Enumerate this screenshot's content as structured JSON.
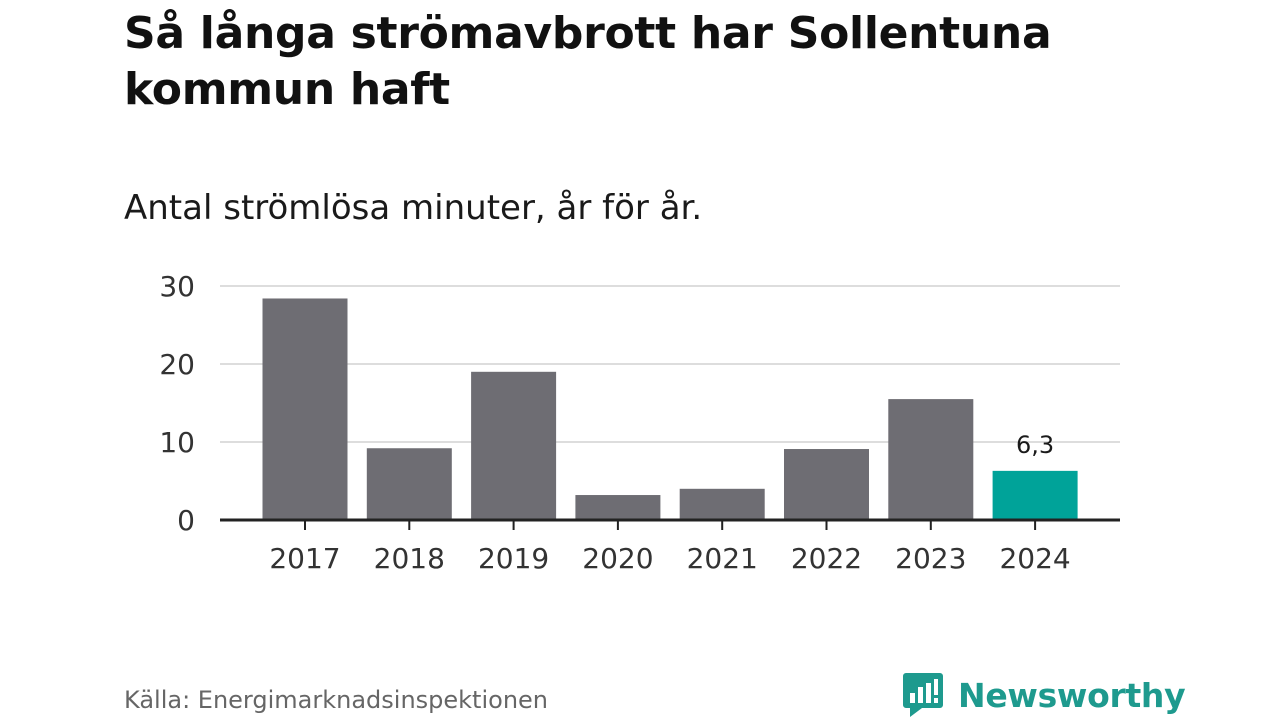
{
  "header": {
    "title": "Så långa strömavbrott har Sollentuna kommun haft",
    "subtitle": "Antal strömlösa minuter, år för år."
  },
  "footer": {
    "source": "Källa: Energimarknadsinspektionen",
    "brand": "Newsworthy"
  },
  "colors": {
    "bar": "#6e6d73",
    "highlight": "#00a399",
    "grid": "#dddddd",
    "axis": "#222222",
    "brand": "#1e9a8e"
  },
  "chart_data": {
    "type": "bar",
    "title": "Så långa strömavbrott har Sollentuna kommun haft",
    "subtitle": "Antal strömlösa minuter, år för år.",
    "xlabel": "",
    "ylabel": "",
    "categories": [
      "2017",
      "2018",
      "2019",
      "2020",
      "2021",
      "2022",
      "2023",
      "2024"
    ],
    "values": [
      28.4,
      9.2,
      19.0,
      3.2,
      4.0,
      9.1,
      15.5,
      6.3
    ],
    "highlight_index": 7,
    "ylim": [
      0,
      30
    ],
    "yticks": [
      0,
      10,
      20,
      30
    ],
    "ytick_labels": [
      "0",
      "10",
      "20",
      "30"
    ],
    "grid": true,
    "annotations": [
      {
        "category": "2024",
        "text": "6,3"
      }
    ]
  }
}
